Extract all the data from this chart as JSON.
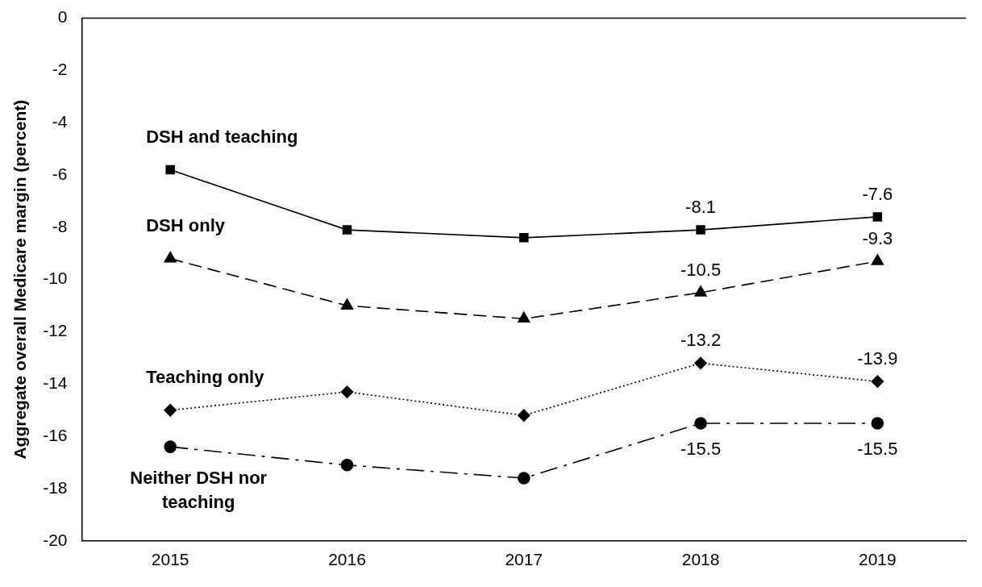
{
  "chart_data": {
    "type": "line",
    "ylabel": "Aggregate overall Medicare margin (percent)",
    "categories": [
      "2015",
      "2016",
      "2017",
      "2018",
      "2019"
    ],
    "series": [
      {
        "name": "DSH and teaching",
        "color": "#000000",
        "marker": "square",
        "line_style": "solid",
        "values": [
          -5.8,
          -8.1,
          -8.4,
          -8.1,
          -7.6
        ],
        "value_labels": [
          null,
          null,
          null,
          "-8.1",
          "-7.6"
        ]
      },
      {
        "name": "DSH only",
        "color": "#000000",
        "marker": "triangle",
        "line_style": "dashed",
        "values": [
          -9.2,
          -11.0,
          -11.5,
          -10.5,
          -9.3
        ],
        "value_labels": [
          null,
          null,
          null,
          "-10.5",
          "-9.3"
        ]
      },
      {
        "name": "Teaching only",
        "color": "#000000",
        "marker": "diamond",
        "line_style": "dotted",
        "values": [
          -15.0,
          -14.3,
          -15.2,
          -13.2,
          -13.9
        ],
        "value_labels": [
          null,
          null,
          null,
          "-13.2",
          "-13.9"
        ]
      },
      {
        "name": "Neither DSH nor teaching",
        "color": "#000000",
        "marker": "circle",
        "line_style": "dashdot",
        "values": [
          -16.4,
          -17.1,
          -17.6,
          -15.5,
          -15.5
        ],
        "value_labels": [
          null,
          null,
          null,
          "-15.5",
          "-15.5"
        ]
      }
    ],
    "ylim": [
      -20,
      0
    ],
    "yticks": [
      0,
      -2,
      -4,
      -6,
      -8,
      -10,
      -12,
      -14,
      -16,
      -18,
      -20
    ],
    "grid": false,
    "legend": false
  }
}
